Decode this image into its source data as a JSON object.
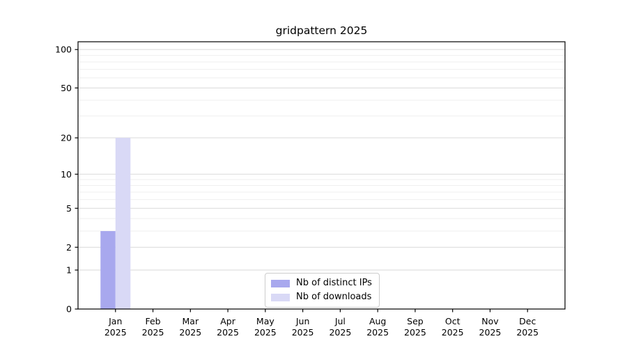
{
  "chart_data": {
    "type": "bar",
    "title": "gridpattern 2025",
    "x_months": [
      "Jan",
      "Feb",
      "Mar",
      "Apr",
      "May",
      "Jun",
      "Jul",
      "Aug",
      "Sep",
      "Oct",
      "Nov",
      "Dec"
    ],
    "x_year": "2025",
    "series": [
      {
        "name": "Nb of distinct IPs",
        "color": "#a8a8ee",
        "values": [
          3,
          0,
          0,
          0,
          0,
          0,
          0,
          0,
          0,
          0,
          0,
          0
        ]
      },
      {
        "name": "Nb of downloads",
        "color": "#d9d9f6",
        "values": [
          20,
          0,
          0,
          0,
          0,
          0,
          0,
          0,
          0,
          0,
          0,
          0
        ]
      }
    ],
    "y_scale": "log1p",
    "y_axis_ticks": [
      0,
      1,
      2,
      5,
      10,
      20,
      50,
      100
    ],
    "y_minor_gridlines": [
      3,
      4,
      6,
      7,
      8,
      9,
      30,
      40,
      60,
      70,
      80,
      90
    ],
    "y_top_value": 115,
    "grid": true,
    "legend_position": "lower center"
  },
  "styles": {
    "background": "#ffffff",
    "axis_color": "#000000",
    "text_color": "#000000",
    "major_grid_color": "#d9d9d9",
    "minor_grid_color": "#efefef",
    "legend_border_color": "#cccccc",
    "legend_background": "#ffffff"
  }
}
